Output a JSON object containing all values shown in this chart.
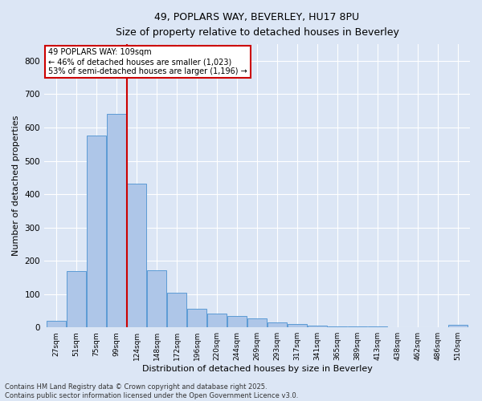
{
  "title_line1": "49, POPLARS WAY, BEVERLEY, HU17 8PU",
  "title_line2": "Size of property relative to detached houses in Beverley",
  "xlabel": "Distribution of detached houses by size in Beverley",
  "ylabel": "Number of detached properties",
  "bar_categories": [
    "27sqm",
    "51sqm",
    "75sqm",
    "99sqm",
    "124sqm",
    "148sqm",
    "172sqm",
    "196sqm",
    "220sqm",
    "244sqm",
    "269sqm",
    "293sqm",
    "317sqm",
    "341sqm",
    "365sqm",
    "389sqm",
    "413sqm",
    "438sqm",
    "462sqm",
    "486sqm",
    "510sqm"
  ],
  "bar_values": [
    20,
    168,
    577,
    642,
    432,
    172,
    103,
    55,
    42,
    35,
    28,
    15,
    10,
    5,
    3,
    2,
    2,
    1,
    1,
    0,
    7
  ],
  "bar_color": "#aec6e8",
  "bar_edge_color": "#5b9bd5",
  "vline_color": "#cc0000",
  "vline_x": 3.5,
  "ylim": [
    0,
    850
  ],
  "yticks": [
    0,
    100,
    200,
    300,
    400,
    500,
    600,
    700,
    800
  ],
  "annotation_text": "49 POPLARS WAY: 109sqm\n← 46% of detached houses are smaller (1,023)\n53% of semi-detached houses are larger (1,196) →",
  "annotation_box_color": "#ffffff",
  "annotation_box_edge": "#cc0000",
  "footer_line1": "Contains HM Land Registry data © Crown copyright and database right 2025.",
  "footer_line2": "Contains public sector information licensed under the Open Government Licence v3.0.",
  "background_color": "#dce6f5",
  "grid_color": "#ffffff",
  "figsize": [
    6.0,
    5.0
  ],
  "dpi": 100
}
